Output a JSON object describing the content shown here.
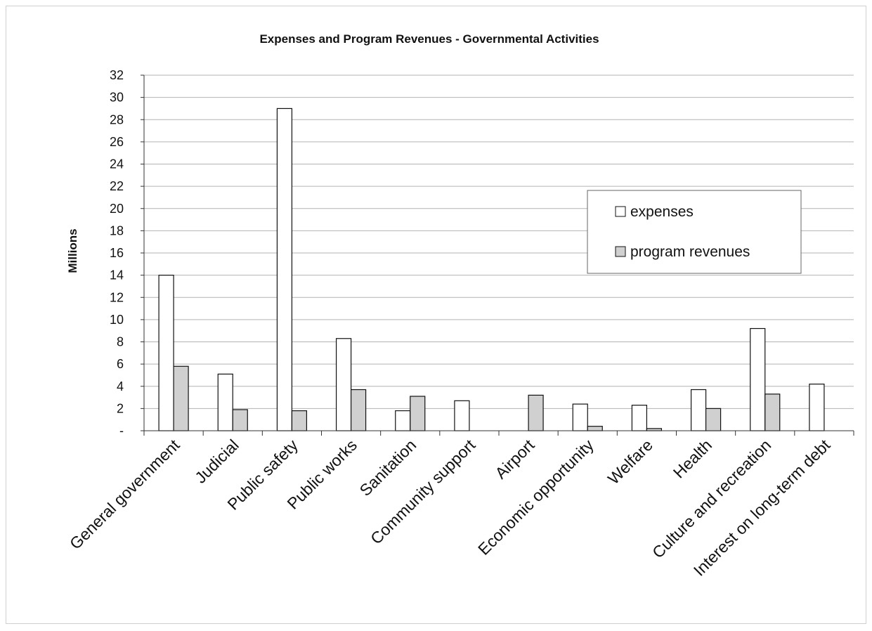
{
  "chart_data": {
    "type": "bar",
    "title": "Expenses and Program Revenues - Governmental Activities",
    "xlabel": "",
    "ylabel": "Millions",
    "ylim": [
      0,
      32
    ],
    "yticks": [
      0,
      2,
      4,
      6,
      8,
      10,
      12,
      14,
      16,
      18,
      20,
      22,
      24,
      26,
      28,
      30,
      32
    ],
    "ytick_labels": [
      "-",
      "2",
      "4",
      "6",
      "8",
      "10",
      "12",
      "14",
      "16",
      "18",
      "20",
      "22",
      "24",
      "26",
      "28",
      "30",
      "32"
    ],
    "grid": true,
    "legend_position": "right",
    "categories": [
      "General government",
      "Judicial",
      "Public safety",
      "Public works",
      "Sanitation",
      "Community support",
      "Airport",
      "Economic opportunity",
      "Welfare",
      "Health",
      "Culture and recreation",
      "Interest on long-term debt"
    ],
    "series": [
      {
        "name": "expenses",
        "color": "#ffffff",
        "values": [
          14.0,
          5.1,
          29.0,
          8.3,
          1.8,
          2.7,
          0,
          2.4,
          2.3,
          3.7,
          9.2,
          4.2
        ]
      },
      {
        "name": "program revenues",
        "color": "#d0d0d0",
        "values": [
          5.8,
          1.9,
          1.8,
          3.7,
          3.1,
          0,
          3.2,
          0.4,
          0.2,
          2.0,
          3.3,
          0
        ]
      }
    ]
  }
}
